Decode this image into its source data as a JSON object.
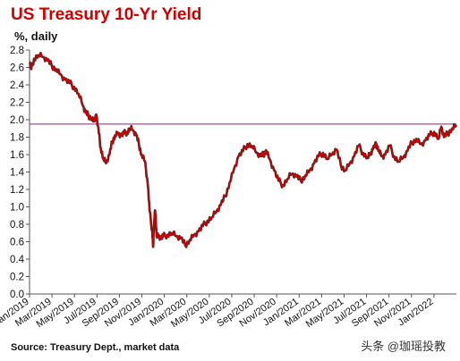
{
  "chart_data": {
    "type": "line",
    "title": "US Treasury 10-Yr Yield",
    "ylabel": "%, daily",
    "xlabel": "",
    "ylim": [
      0,
      2.8
    ],
    "yticks": [
      "0.0",
      "0.2",
      "0.4",
      "0.6",
      "0.8",
      "1.0",
      "1.2",
      "1.4",
      "1.6",
      "1.8",
      "2.0",
      "2.2",
      "2.4",
      "2.6",
      "2.8"
    ],
    "xticks": [
      "Jan/2019",
      "Mar/2019",
      "May/2019",
      "Jul/2019",
      "Sep/2019",
      "Nov/2019",
      "Jan/2020",
      "Mar/2020",
      "May/2020",
      "Jul/2020",
      "Sep/2020",
      "Nov/2020",
      "Jan/2021",
      "Mar/2021",
      "May/2021",
      "Jul/2021",
      "Sep/2021",
      "Nov/2021",
      "Jan/2022"
    ],
    "reference_line": 1.95,
    "series": [
      {
        "color": "#cc0000",
        "x": [
          0,
          0.2,
          0.5,
          1.0,
          1.5,
          2.0,
          2.5,
          3.0,
          3.5,
          4.0,
          4.5,
          5.0,
          5.5,
          6.0,
          6.3,
          6.6,
          7.0,
          7.2,
          7.5,
          7.8,
          8.0,
          8.3,
          8.6,
          9.0,
          9.3,
          9.6,
          10.0,
          10.3,
          10.6,
          11.0,
          11.3,
          11.6,
          12.0,
          12.3,
          12.6,
          13.0,
          13.3,
          13.5,
          13.8,
          13.9,
          14.0,
          14.1,
          14.2,
          14.3,
          14.5,
          14.8,
          15.0,
          15.5,
          16.0,
          16.5,
          17.0,
          17.5,
          18.0,
          18.5,
          19.0,
          19.5,
          20.0,
          20.5,
          21.0,
          21.5,
          22.0,
          22.5,
          23.0,
          23.5,
          24.0,
          24.5,
          25.0,
          25.5,
          26.0,
          26.3,
          26.6,
          27.0,
          27.5,
          28.0,
          28.5,
          29.0,
          29.5,
          30.0,
          30.5,
          31.0,
          31.5,
          32.0,
          32.5,
          33.0,
          33.5,
          34.0,
          34.5,
          35.0,
          35.5,
          36.0,
          36.5,
          37.0,
          37.5,
          38.0,
          38.3,
          38.6,
          39.0,
          39.3,
          39.6,
          40.0,
          40.5,
          41.0,
          41.5,
          42.0,
          42.5,
          43.0,
          43.5,
          44.0,
          44.5,
          45.0,
          45.5,
          46.0,
          46.3,
          46.6,
          47.0,
          47.5,
          48.0
        ],
        "values": [
          2.66,
          2.58,
          2.7,
          2.74,
          2.72,
          2.68,
          2.62,
          2.58,
          2.52,
          2.46,
          2.42,
          2.38,
          2.3,
          2.16,
          2.08,
          2.05,
          2.02,
          1.98,
          2.06,
          1.84,
          1.68,
          1.55,
          1.5,
          1.6,
          1.75,
          1.82,
          1.85,
          1.82,
          1.84,
          1.86,
          1.9,
          1.88,
          1.82,
          1.72,
          1.6,
          1.52,
          1.25,
          0.95,
          0.72,
          0.54,
          0.8,
          0.96,
          0.84,
          0.66,
          0.68,
          0.64,
          0.66,
          0.68,
          0.7,
          0.66,
          0.64,
          0.56,
          0.62,
          0.68,
          0.72,
          0.78,
          0.84,
          0.88,
          0.94,
          1.02,
          1.12,
          1.28,
          1.44,
          1.58,
          1.64,
          1.72,
          1.7,
          1.62,
          1.58,
          1.6,
          1.65,
          1.55,
          1.42,
          1.3,
          1.25,
          1.32,
          1.38,
          1.35,
          1.3,
          1.36,
          1.42,
          1.5,
          1.58,
          1.62,
          1.55,
          1.6,
          1.66,
          1.48,
          1.42,
          1.5,
          1.58,
          1.7,
          1.62,
          1.56,
          1.6,
          1.66,
          1.72,
          1.65,
          1.58,
          1.6,
          1.7,
          1.58,
          1.52,
          1.56,
          1.64,
          1.74,
          1.78,
          1.72,
          1.76,
          1.82,
          1.86,
          1.78,
          1.92,
          1.8,
          1.84,
          1.9,
          1.94
        ]
      }
    ]
  },
  "source": "Source: Treasury Dept., market data",
  "watermark": "头条 @珈瑶投教"
}
